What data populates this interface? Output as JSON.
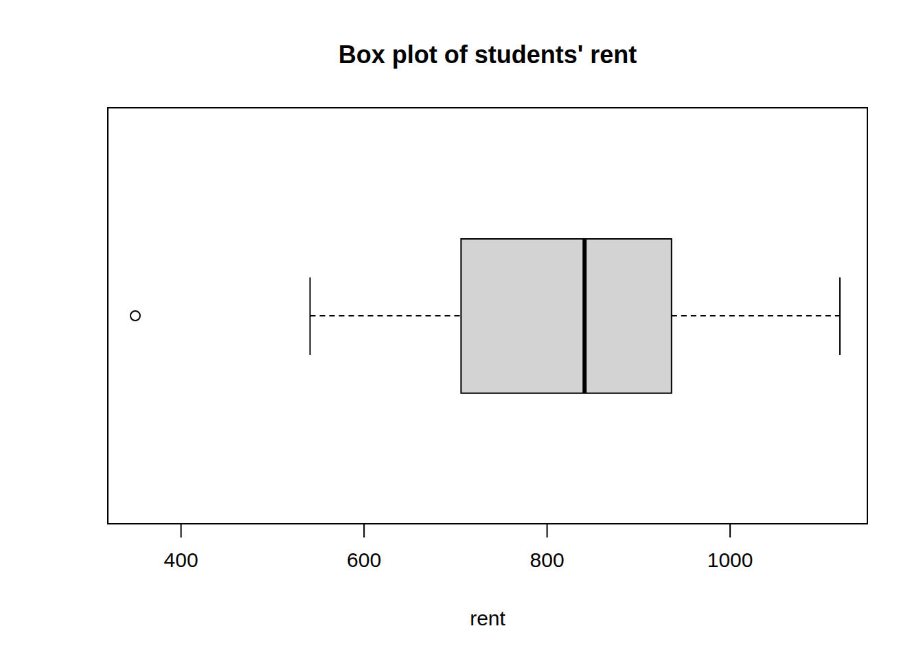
{
  "chart_data": {
    "type": "boxplot",
    "title": "Box plot of students' rent",
    "x_label": "rent",
    "orientation": "horizontal",
    "color": "#d3d3d3",
    "marker": "open_circle",
    "box": {
      "whisker_low": 541,
      "q1": 706,
      "median": 841,
      "q3": 936,
      "whisker_high": 1120
    },
    "outliers": [
      350
    ],
    "xlim": [
      320,
      1150
    ],
    "xticks": [
      400,
      600,
      800,
      1000
    ]
  }
}
